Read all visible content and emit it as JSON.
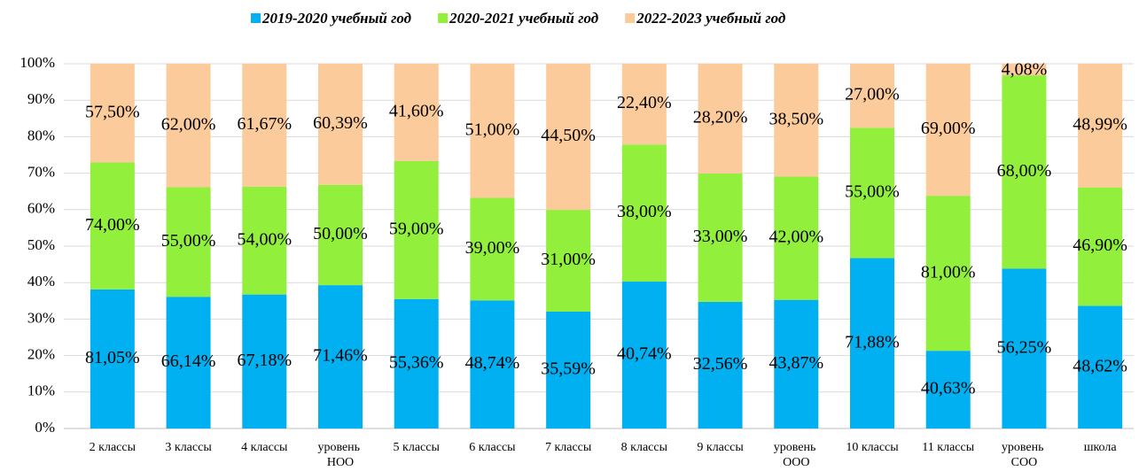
{
  "chart_data": {
    "type": "bar100",
    "categories": [
      "2 классы",
      "3 классы",
      "4 классы",
      "уровень НОО",
      "5 классы",
      "6 классы",
      "7 классы",
      "8 классы",
      "9 классы",
      "уровень ООО",
      "10 классы",
      "11 классы",
      "уровень СОО",
      "школа"
    ],
    "series": [
      {
        "name": "2019-2020 учебный год",
        "color": "#00b0f0",
        "values": [
          81.05,
          66.14,
          67.18,
          71.46,
          55.36,
          48.74,
          35.59,
          40.74,
          32.56,
          43.87,
          71.88,
          40.63,
          56.25,
          48.62
        ],
        "value_labels": [
          "81,05%",
          "66,14%",
          "67,18%",
          "71,46%",
          "55,36%",
          "48,74%",
          "35,59%",
          "40,74%",
          "32,56%",
          "43,87%",
          "71,88%",
          "40,63%",
          "56,25%",
          "48,62%"
        ]
      },
      {
        "name": "2020-2021 учебный год",
        "color": "#92f03c",
        "values": [
          74.0,
          55.0,
          54.0,
          50.0,
          59.0,
          39.0,
          31.0,
          38.0,
          33.0,
          42.0,
          55.0,
          81.0,
          68.0,
          46.9
        ],
        "value_labels": [
          "74,00%",
          "55,00%",
          "54,00%",
          "50,00%",
          "59,00%",
          "39,00%",
          "31,00%",
          "38,00%",
          "33,00%",
          "42,00%",
          "55,00%",
          "81,00%",
          "68,00%",
          "46,90%"
        ]
      },
      {
        "name": "2022-2023 учебный год",
        "color": "#fbcb9b",
        "values": [
          57.5,
          62.0,
          61.67,
          60.39,
          41.6,
          51.0,
          44.5,
          22.4,
          28.2,
          38.5,
          27.0,
          69.0,
          4.08,
          48.99
        ],
        "value_labels": [
          "57,50%",
          "62,00%",
          "61,67%",
          "60,39%",
          "41,60%",
          "51,00%",
          "44,50%",
          "22,40%",
          "28,20%",
          "38,50%",
          "27,00%",
          "69,00%",
          "4,08%",
          "48,99%"
        ]
      }
    ],
    "ylim": [
      0,
      100
    ],
    "yticks": [
      {
        "value": 0,
        "label": "0%"
      },
      {
        "value": 10,
        "label": "10%"
      },
      {
        "value": 20,
        "label": "20%"
      },
      {
        "value": 30,
        "label": "30%"
      },
      {
        "value": 40,
        "label": "40%"
      },
      {
        "value": 50,
        "label": "50%"
      },
      {
        "value": 60,
        "label": "60%"
      },
      {
        "value": 70,
        "label": "70%"
      },
      {
        "value": 80,
        "label": "80%"
      },
      {
        "value": 90,
        "label": "90%"
      },
      {
        "value": 100,
        "label": "100%"
      }
    ],
    "grid": true,
    "legend": "top"
  }
}
